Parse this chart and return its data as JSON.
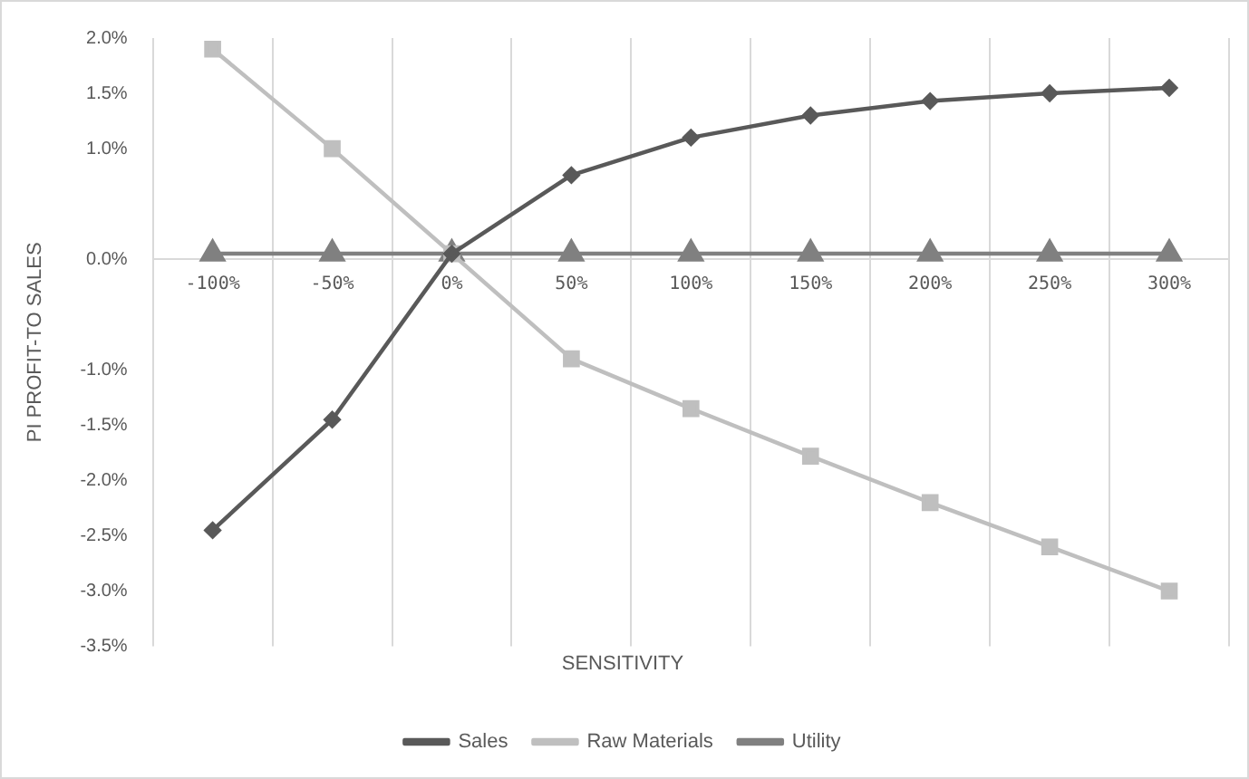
{
  "chart_data": {
    "type": "line",
    "xlabel": "SENSITIVITY",
    "ylabel": "PI PROFIT-TO SALES",
    "categories": [
      "-100%",
      "-50%",
      "0%",
      "50%",
      "100%",
      "150%",
      "200%",
      "250%",
      "300%"
    ],
    "series": [
      {
        "name": "Sales",
        "color": "#595959",
        "marker": "diamond",
        "values": [
          -2.45,
          -1.45,
          0.05,
          0.76,
          1.1,
          1.3,
          1.43,
          1.5,
          1.55
        ]
      },
      {
        "name": "Raw Materials",
        "color": "#bfbfbf",
        "marker": "square",
        "values": [
          1.9,
          1.0,
          0.05,
          -0.9,
          -1.35,
          -1.78,
          -2.2,
          -2.6,
          -3.0
        ]
      },
      {
        "name": "Utility",
        "color": "#808080",
        "marker": "triangle",
        "values": [
          0.05,
          0.05,
          0.05,
          0.05,
          0.05,
          0.05,
          0.05,
          0.05,
          0.05
        ]
      }
    ],
    "ylim": [
      -3.5,
      2.0
    ],
    "yticks": [
      {
        "value": 2.0,
        "label": "2.0%"
      },
      {
        "value": 1.5,
        "label": "1.5%"
      },
      {
        "value": 1.0,
        "label": "1.0%"
      },
      {
        "value": 0.0,
        "label": "0.0%"
      },
      {
        "value": -1.0,
        "label": "-1.0%"
      },
      {
        "value": -1.5,
        "label": "-1.5%"
      },
      {
        "value": -2.0,
        "label": "-2.0%"
      },
      {
        "value": -2.5,
        "label": "-2.5%"
      },
      {
        "value": -3.0,
        "label": "-3.0%"
      },
      {
        "value": -3.5,
        "label": "-3.5%"
      }
    ],
    "grid": "x",
    "legend": "bottom"
  }
}
